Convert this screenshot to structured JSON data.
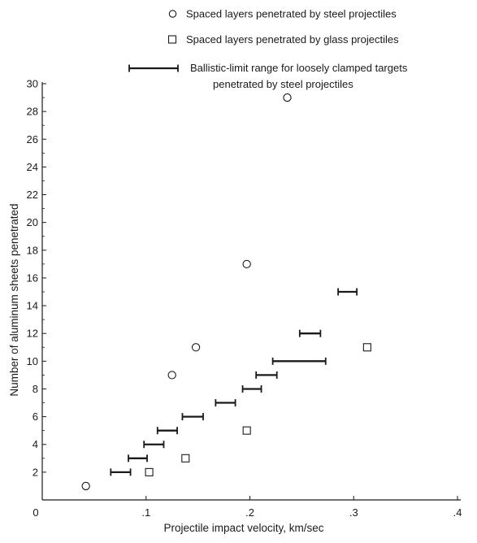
{
  "chart_data": {
    "type": "scatter",
    "xlabel": "Projectile impact velocity, km/sec",
    "ylabel": "Number of aluminum sheets penetrated",
    "xlim": [
      0,
      0.4
    ],
    "ylim": [
      0,
      30
    ],
    "x_ticks": [
      0,
      0.1,
      0.2,
      0.3,
      0.4
    ],
    "x_tick_labels": [
      "0",
      ".1",
      ".2",
      ".3",
      ".4"
    ],
    "y_ticks": [
      2,
      4,
      6,
      8,
      10,
      12,
      14,
      16,
      18,
      20,
      22,
      24,
      26,
      28,
      30
    ],
    "y_tick_labels": [
      "2",
      "4",
      "6",
      "8",
      "10",
      "12",
      "14",
      "16",
      "18",
      "20",
      "22",
      "24",
      "26",
      "28",
      "30"
    ],
    "grid": false,
    "legend_position": "top-right",
    "legend": [
      {
        "marker": "circle",
        "label": "Spaced layers penetrated by steel projectiles"
      },
      {
        "marker": "square",
        "label": "Spaced layers penetrated by glass projectiles"
      },
      {
        "marker": "range-bar",
        "label": "Ballistic-limit range for loosely clamped targets",
        "label_line2": "penetrated by steel projectiles"
      }
    ],
    "series": [
      {
        "name": "Spaced layers penetrated by steel projectiles",
        "marker": "circle",
        "points": [
          {
            "x": 0.042,
            "y": 1
          },
          {
            "x": 0.125,
            "y": 9
          },
          {
            "x": 0.148,
            "y": 11
          },
          {
            "x": 0.197,
            "y": 17
          },
          {
            "x": 0.236,
            "y": 29
          }
        ]
      },
      {
        "name": "Spaced layers penetrated by glass projectiles",
        "marker": "square",
        "points": [
          {
            "x": 0.103,
            "y": 2
          },
          {
            "x": 0.138,
            "y": 3
          },
          {
            "x": 0.197,
            "y": 5
          },
          {
            "x": 0.313,
            "y": 11
          }
        ]
      },
      {
        "name": "Ballistic-limit range for loosely clamped targets penetrated by steel projectiles",
        "marker": "range-bar",
        "ranges": [
          {
            "x_min": 0.066,
            "x_max": 0.085,
            "y": 2
          },
          {
            "x_min": 0.083,
            "x_max": 0.101,
            "y": 3
          },
          {
            "x_min": 0.098,
            "x_max": 0.117,
            "y": 4
          },
          {
            "x_min": 0.111,
            "x_max": 0.13,
            "y": 5
          },
          {
            "x_min": 0.135,
            "x_max": 0.155,
            "y": 6
          },
          {
            "x_min": 0.167,
            "x_max": 0.186,
            "y": 7
          },
          {
            "x_min": 0.193,
            "x_max": 0.211,
            "y": 8
          },
          {
            "x_min": 0.206,
            "x_max": 0.226,
            "y": 9
          },
          {
            "x_min": 0.222,
            "x_max": 0.273,
            "y": 10
          },
          {
            "x_min": 0.248,
            "x_max": 0.268,
            "y": 12
          },
          {
            "x_min": 0.285,
            "x_max": 0.303,
            "y": 15
          }
        ]
      }
    ]
  }
}
